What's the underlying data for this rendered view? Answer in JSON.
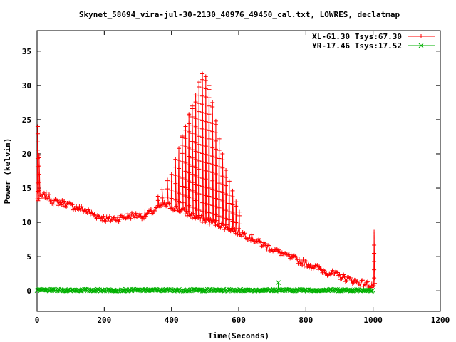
{
  "chart_data": {
    "type": "line",
    "title": "Skynet_58694_vira-jul-30-2130_40976_49450_cal.txt, LOWRES, declatmap",
    "xlabel": "Time(Seconds)",
    "ylabel": "Power (kelvin)",
    "xlim": [
      0,
      1200
    ],
    "ylim": [
      -3,
      38
    ],
    "xticks": [
      0,
      200,
      400,
      600,
      800,
      1000,
      1200
    ],
    "yticks": [
      0,
      5,
      10,
      15,
      20,
      25,
      30,
      35
    ],
    "grid": false,
    "legend_position": "top-right",
    "series": [
      {
        "name": "XL-61.30 Tsys:67.30",
        "color": "#ff0000",
        "marker": "plus",
        "baseline": [
          [
            0,
            13.3
          ],
          [
            10,
            13.5
          ],
          [
            25,
            14.0
          ],
          [
            50,
            13.0
          ],
          [
            80,
            12.8
          ],
          [
            100,
            12.4
          ],
          [
            140,
            11.8
          ],
          [
            170,
            11.1
          ],
          [
            210,
            10.4
          ],
          [
            240,
            10.6
          ],
          [
            280,
            11.0
          ],
          [
            320,
            11.0
          ],
          [
            360,
            12.0
          ],
          [
            380,
            12.6
          ],
          [
            400,
            12.3
          ],
          [
            440,
            11.5
          ],
          [
            480,
            10.6
          ],
          [
            520,
            10.1
          ],
          [
            560,
            9.4
          ],
          [
            620,
            8.2
          ],
          [
            680,
            6.6
          ],
          [
            740,
            5.2
          ],
          [
            800,
            4.0
          ],
          [
            860,
            2.8
          ],
          [
            920,
            1.8
          ],
          [
            960,
            1.2
          ],
          [
            1000,
            0.8
          ],
          [
            1005,
            0.6
          ]
        ],
        "spikes": [
          [
            2,
            24.0
          ],
          [
            6,
            19.8
          ],
          [
            360,
            13.8
          ],
          [
            372,
            14.8
          ],
          [
            388,
            16.2
          ],
          [
            400,
            17.0
          ],
          [
            412,
            19.2
          ],
          [
            422,
            20.8
          ],
          [
            432,
            22.6
          ],
          [
            442,
            24.0
          ],
          [
            452,
            25.8
          ],
          [
            462,
            27.0
          ],
          [
            472,
            28.6
          ],
          [
            482,
            30.5
          ],
          [
            492,
            31.7
          ],
          [
            502,
            31.3
          ],
          [
            512,
            30.0
          ],
          [
            522,
            27.5
          ],
          [
            532,
            24.8
          ],
          [
            542,
            22.2
          ],
          [
            552,
            20.0
          ],
          [
            562,
            17.6
          ],
          [
            572,
            16.0
          ],
          [
            582,
            14.6
          ],
          [
            592,
            13.0
          ],
          [
            602,
            11.5
          ],
          [
            1003,
            8.6
          ]
        ]
      },
      {
        "name": "YR-17.46 Tsys:17.52",
        "color": "#00b000",
        "marker": "cross",
        "baseline": [
          [
            0,
            0.1
          ],
          [
            1000,
            0.1
          ]
        ],
        "spikes": [
          [
            718,
            1.2
          ]
        ]
      }
    ]
  }
}
